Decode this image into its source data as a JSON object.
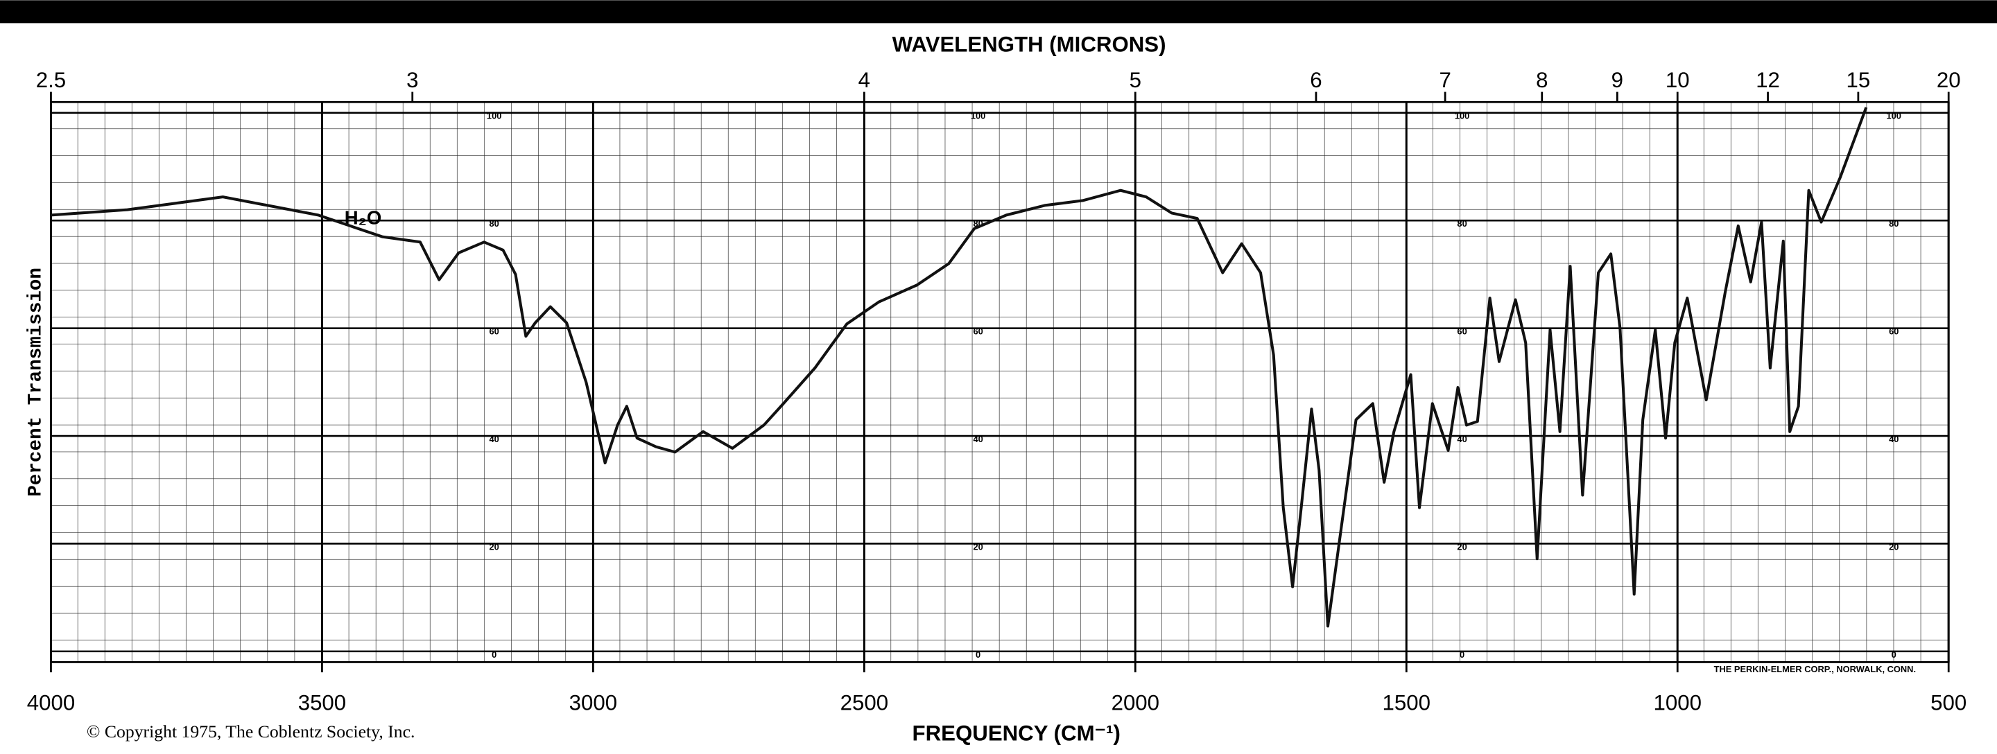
{
  "chart_data": {
    "type": "line",
    "title": "WAVELENGTH (MICRONS)",
    "x_label": "FREQUENCY (CM⁻¹)",
    "y_label": "Percent Transmission",
    "copyright": "© Copyright 1975, The Coblentz Society, Inc.",
    "maker": "THE PERKIN-ELMER CORP., NORWALK, CONN.",
    "annotation": "H₂O",
    "color": "#111111",
    "grid": true,
    "xlim": [
      4000,
      500
    ],
    "ylim": [
      -2,
      102
    ],
    "xticks": [
      4000,
      3500,
      3000,
      2500,
      2000,
      1500,
      1000,
      500
    ],
    "yticks": [
      0,
      20,
      40,
      60,
      80,
      100
    ],
    "wavelength_ticks": [
      2.5,
      3,
      4,
      5,
      6,
      7,
      8,
      9,
      10,
      12,
      15,
      20
    ],
    "x": [
      4000,
      3859,
      3683,
      3507,
      3389,
      3319,
      3284,
      3248,
      3201,
      3166,
      3143,
      3124,
      3107,
      3079,
      3049,
      3013,
      2978,
      2955,
      2938,
      2919,
      2884,
      2849,
      2797,
      2743,
      2685,
      2649,
      2591,
      2532,
      2473,
      2403,
      2344,
      2297,
      2238,
      2167,
      2097,
      2027,
      1980,
      1933,
      1886,
      1839,
      1804,
      1769,
      1745,
      1727,
      1710,
      1694,
      1675,
      1661,
      1645,
      1628,
      1593,
      1562,
      1541,
      1523,
      1492,
      1476,
      1452,
      1423,
      1405,
      1389,
      1369,
      1346,
      1329,
      1299,
      1280,
      1259,
      1235,
      1217,
      1198,
      1175,
      1146,
      1123,
      1106,
      1080,
      1064,
      1041,
      1022,
      1005,
      982,
      947,
      912,
      888,
      865,
      845,
      829,
      805,
      793,
      777,
      758,
      735,
      700,
      652
    ],
    "values": [
      81,
      82,
      84.4,
      81,
      77,
      76,
      69,
      74,
      76,
      74.5,
      70,
      58.5,
      61,
      64,
      61,
      50,
      35,
      42,
      45.5,
      39.6,
      38,
      37,
      40.8,
      37.7,
      42,
      46,
      52.6,
      60.8,
      64.9,
      68,
      72,
      78.5,
      81,
      82.8,
      83.7,
      85.6,
      84.4,
      81.4,
      80.4,
      70.3,
      75.7,
      70.3,
      55,
      26.7,
      12,
      26.7,
      45,
      33.7,
      4.7,
      17.2,
      43,
      46,
      31.4,
      40.8,
      51.4,
      26.7,
      46,
      37.3,
      49,
      42,
      42.7,
      65.6,
      53.8,
      65.3,
      57.3,
      17.2,
      59.7,
      40.8,
      71.5,
      29,
      70.3,
      73.8,
      60.1,
      10.6,
      43,
      59.7,
      39.6,
      57.3,
      65.6,
      46.7,
      66.7,
      79,
      68.6,
      79.7,
      52.6,
      76.2,
      40.8,
      45.5,
      85.6,
      79.7,
      88,
      101
    ]
  }
}
